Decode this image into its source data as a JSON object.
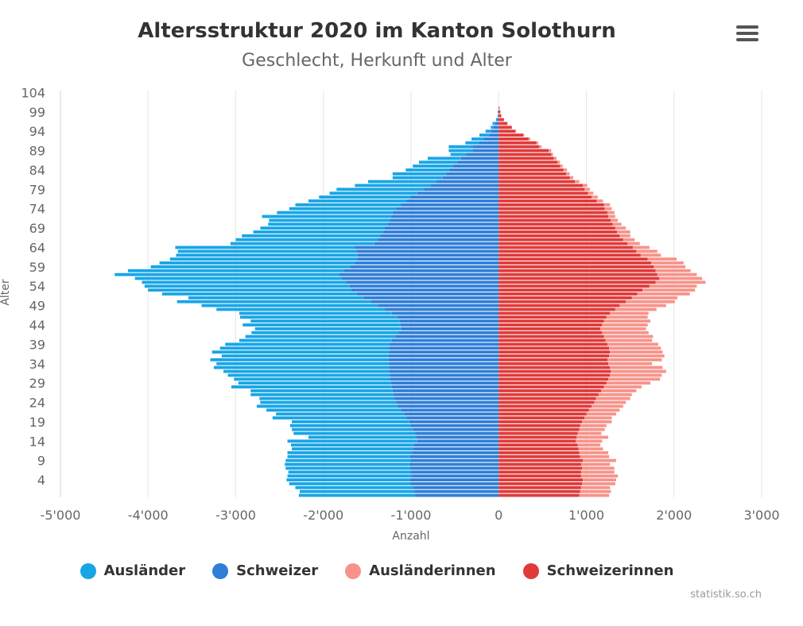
{
  "chart_data": {
    "type": "bar",
    "orientation": "horizontal",
    "stacking": "normal",
    "title": "Altersstruktur 2020 im Kanton Solothurn",
    "subtitle": "Geschlecht, Herkunft und Alter",
    "xlabel": "Anzahl",
    "ylabel": "Alter",
    "xlim": [
      -5000,
      3000
    ],
    "x_ticks": [
      -5000,
      -4000,
      -3000,
      -2000,
      -1000,
      0,
      1000,
      2000,
      3000
    ],
    "x_tick_labels": [
      "-5'000",
      "-4'000",
      "-3'000",
      "-2'000",
      "-1'000",
      "0",
      "1'000",
      "2'000",
      "3'000"
    ],
    "y_ticks": [
      4,
      9,
      14,
      19,
      24,
      29,
      34,
      39,
      44,
      49,
      54,
      59,
      64,
      69,
      74,
      79,
      84,
      89,
      94,
      99,
      104
    ],
    "y_tick_labels": [
      "4",
      "9",
      "14",
      "19",
      "24",
      "29",
      "34",
      "39",
      "44",
      "49",
      "54",
      "59",
      "64",
      "69",
      "74",
      "79",
      "84",
      "89",
      "94",
      "99",
      "104"
    ],
    "ages": [
      0,
      1,
      2,
      3,
      4,
      5,
      6,
      7,
      8,
      9,
      10,
      11,
      12,
      13,
      14,
      15,
      16,
      17,
      18,
      19,
      20,
      21,
      22,
      23,
      24,
      25,
      26,
      27,
      28,
      29,
      30,
      31,
      32,
      33,
      34,
      35,
      36,
      37,
      38,
      39,
      40,
      41,
      42,
      43,
      44,
      45,
      46,
      47,
      48,
      49,
      50,
      51,
      52,
      53,
      54,
      55,
      56,
      57,
      58,
      59,
      60,
      61,
      62,
      63,
      64,
      65,
      66,
      67,
      68,
      69,
      70,
      71,
      72,
      73,
      74,
      75,
      76,
      77,
      78,
      79,
      80,
      81,
      82,
      83,
      84,
      85,
      86,
      87,
      88,
      89,
      90,
      91,
      92,
      93,
      94,
      95,
      96,
      97,
      98,
      99,
      100,
      101,
      102,
      103,
      104
    ],
    "series": [
      {
        "name": "Schweizer",
        "color": "#2f7ed8",
        "values": [
          -950,
          -960,
          -980,
          -1000,
          -1010,
          -990,
          -1000,
          -1010,
          -1020,
          -1000,
          -1010,
          -990,
          -980,
          -970,
          -930,
          -940,
          -950,
          -980,
          -1000,
          -1020,
          -1050,
          -1080,
          -1120,
          -1150,
          -1170,
          -1190,
          -1200,
          -1210,
          -1220,
          -1230,
          -1240,
          -1240,
          -1250,
          -1250,
          -1250,
          -1260,
          -1260,
          -1250,
          -1250,
          -1240,
          -1220,
          -1180,
          -1140,
          -1110,
          -1120,
          -1130,
          -1160,
          -1220,
          -1300,
          -1380,
          -1460,
          -1540,
          -1620,
          -1680,
          -1700,
          -1740,
          -1790,
          -1820,
          -1770,
          -1690,
          -1640,
          -1620,
          -1610,
          -1620,
          -1640,
          -1420,
          -1380,
          -1350,
          -1320,
          -1300,
          -1270,
          -1240,
          -1230,
          -1210,
          -1170,
          -1120,
          -1050,
          -1000,
          -930,
          -850,
          -780,
          -710,
          -640,
          -600,
          -560,
          -520,
          -470,
          -430,
          -370,
          -300,
          -300,
          -220,
          -170,
          -110,
          -90,
          -60,
          -40,
          -20,
          -10,
          -10,
          0,
          0,
          0,
          0,
          0
        ]
      },
      {
        "name": "Ausländer",
        "color": "#18a5e6",
        "values": [
          -1330,
          -1310,
          -1340,
          -1390,
          -1410,
          -1420,
          -1400,
          -1420,
          -1420,
          -1430,
          -1400,
          -1420,
          -1380,
          -1400,
          -1480,
          -1230,
          -1390,
          -1380,
          -1380,
          -1340,
          -1530,
          -1460,
          -1530,
          -1610,
          -1550,
          -1540,
          -1630,
          -1620,
          -1830,
          -1740,
          -1780,
          -1850,
          -1890,
          -2000,
          -1970,
          -2030,
          -1900,
          -2020,
          -1930,
          -1880,
          -1740,
          -1710,
          -1680,
          -1670,
          -1800,
          -1700,
          -1790,
          -1740,
          -1920,
          -2010,
          -2210,
          -2000,
          -2220,
          -2320,
          -2340,
          -2330,
          -2360,
          -2560,
          -2460,
          -2280,
          -2230,
          -2130,
          -2070,
          -2040,
          -2050,
          -1640,
          -1620,
          -1580,
          -1480,
          -1420,
          -1360,
          -1380,
          -1470,
          -1320,
          -1220,
          -1200,
          -1120,
          -1050,
          -1000,
          -1000,
          -860,
          -780,
          -570,
          -610,
          -500,
          -460,
          -440,
          -380,
          -180,
          -270,
          -270,
          -160,
          -140,
          -110,
          -60,
          -30,
          -30,
          -10,
          0,
          0,
          0,
          0,
          0,
          0,
          0
        ]
      },
      {
        "name": "Schweizerinnen",
        "color": "#e03a3a",
        "values": [
          920,
          930,
          940,
          950,
          960,
          940,
          940,
          950,
          940,
          960,
          930,
          920,
          910,
          900,
          880,
          890,
          900,
          920,
          930,
          950,
          980,
          1000,
          1030,
          1060,
          1090,
          1110,
          1140,
          1170,
          1200,
          1230,
          1250,
          1270,
          1280,
          1270,
          1250,
          1240,
          1260,
          1270,
          1260,
          1240,
          1220,
          1200,
          1180,
          1160,
          1180,
          1200,
          1230,
          1270,
          1330,
          1380,
          1450,
          1520,
          1580,
          1640,
          1720,
          1790,
          1830,
          1810,
          1790,
          1770,
          1740,
          1700,
          1620,
          1570,
          1530,
          1470,
          1420,
          1380,
          1350,
          1330,
          1300,
          1280,
          1250,
          1240,
          1210,
          1200,
          1120,
          1060,
          1020,
          980,
          960,
          870,
          810,
          770,
          740,
          700,
          670,
          630,
          600,
          570,
          460,
          430,
          340,
          280,
          190,
          150,
          100,
          60,
          30,
          20,
          10,
          0,
          0,
          0,
          0
        ]
      },
      {
        "name": "Ausländerinnen",
        "color": "#f7938a",
        "values": [
          340,
          350,
          330,
          380,
          380,
          420,
          380,
          370,
          330,
          380,
          330,
          330,
          280,
          260,
          300,
          360,
          270,
          290,
          300,
          340,
          310,
          340,
          350,
          360,
          360,
          390,
          380,
          400,
          430,
          500,
          590,
          590,
          630,
          600,
          500,
          620,
          630,
          600,
          590,
          580,
          530,
          560,
          530,
          520,
          520,
          530,
          470,
          440,
          470,
          530,
          560,
          520,
          600,
          600,
          540,
          570,
          490,
          450,
          400,
          360,
          370,
          330,
          230,
          240,
          190,
          140,
          130,
          120,
          150,
          120,
          100,
          80,
          80,
          80,
          80,
          70,
          70,
          70,
          60,
          60,
          50,
          50,
          40,
          40,
          40,
          30,
          30,
          30,
          20,
          30,
          30,
          20,
          20,
          10,
          10,
          0,
          0,
          0,
          0,
          0,
          0,
          0,
          0,
          0,
          0
        ]
      }
    ],
    "legend": {
      "position": "bottom-center",
      "items": [
        "Ausländer",
        "Schweizer",
        "Ausländerinnen",
        "Schweizerinnen"
      ]
    },
    "grid": {
      "vertical": true,
      "horizontal": false
    }
  },
  "credits": "statistik.so.ch"
}
